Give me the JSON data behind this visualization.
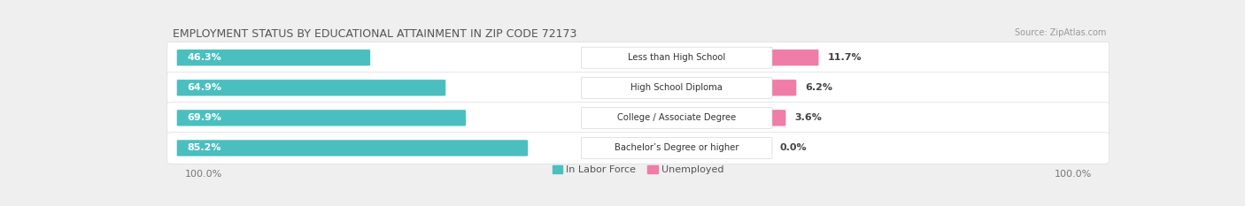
{
  "title": "EMPLOYMENT STATUS BY EDUCATIONAL ATTAINMENT IN ZIP CODE 72173",
  "source": "Source: ZipAtlas.com",
  "categories": [
    "Less than High School",
    "High School Diploma",
    "College / Associate Degree",
    "Bachelor’s Degree or higher"
  ],
  "labor_force": [
    46.3,
    64.9,
    69.9,
    85.2
  ],
  "unemployed": [
    11.7,
    6.2,
    3.6,
    0.0
  ],
  "labor_force_color": "#4BBFC0",
  "unemployed_color": "#F07CA8",
  "background_color": "#efefef",
  "row_bg_color": "#ffffff",
  "title_fontsize": 9,
  "label_fontsize": 8,
  "tick_fontsize": 8,
  "x_left_label": "100.0%",
  "x_right_label": "100.0%",
  "legend_labor": "In Labor Force",
  "legend_unemployed": "Unemployed"
}
